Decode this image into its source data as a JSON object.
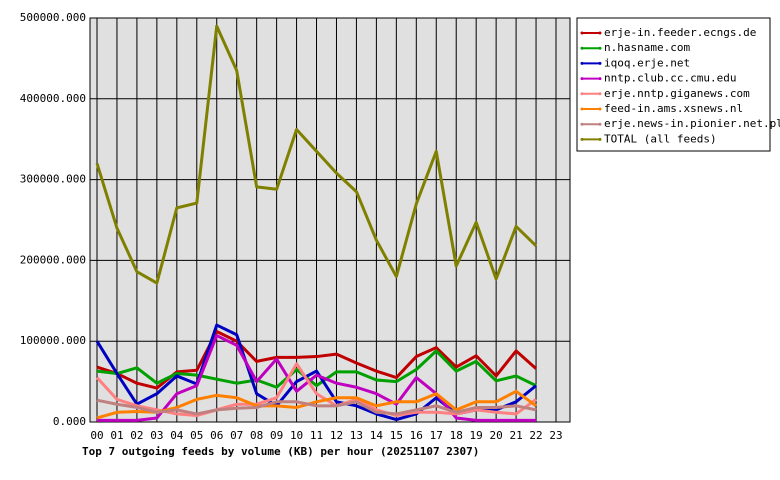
{
  "chart_data": {
    "type": "line",
    "title": "Top 7 outgoing feeds by volume (KB) per hour (20251107 2307)",
    "categories": [
      "00",
      "01",
      "02",
      "03",
      "04",
      "05",
      "06",
      "07",
      "08",
      "09",
      "10",
      "11",
      "12",
      "13",
      "14",
      "15",
      "16",
      "17",
      "18",
      "19",
      "20",
      "21",
      "22",
      "23"
    ],
    "ylim": [
      0,
      500000
    ],
    "yticks": [
      {
        "value": 0,
        "label": "0.000"
      },
      {
        "value": 100000,
        "label": "100000.000"
      },
      {
        "value": 200000,
        "label": "200000.000"
      },
      {
        "value": 300000,
        "label": "300000.000"
      },
      {
        "value": 400000,
        "label": "400000.000"
      },
      {
        "value": 500000,
        "label": "500000.000"
      }
    ],
    "grid": true,
    "legend": "right",
    "series": [
      {
        "name": "erje-in.feeder.ecngs.de",
        "color": "#c00000",
        "values": [
          68000,
          60000,
          48000,
          42000,
          62000,
          64000,
          112000,
          100000,
          75000,
          80000,
          80000,
          81000,
          84000,
          73000,
          63000,
          55000,
          81000,
          92000,
          68000,
          82000,
          57000,
          88000,
          66000,
          null
        ]
      },
      {
        "name": "n.hasname.com",
        "color": "#00a000",
        "values": [
          63000,
          60000,
          67000,
          48000,
          60000,
          58000,
          53000,
          48000,
          52000,
          43000,
          65000,
          45000,
          62000,
          62000,
          52000,
          50000,
          65000,
          88000,
          63000,
          75000,
          51000,
          57000,
          45000,
          null
        ]
      },
      {
        "name": "iqoq.erje.net",
        "color": "#0000c0",
        "values": [
          100000,
          60000,
          22000,
          35000,
          57000,
          47000,
          120000,
          108000,
          35000,
          20000,
          50000,
          63000,
          25000,
          20000,
          10000,
          3000,
          10000,
          30000,
          10000,
          15000,
          15000,
          25000,
          45000,
          null
        ]
      },
      {
        "name": "nntp.club.cc.cmu.edu",
        "color": "#c000c0",
        "values": [
          2000,
          2000,
          2000,
          5000,
          35000,
          45000,
          107000,
          95000,
          50000,
          78000,
          38000,
          58000,
          48000,
          43000,
          35000,
          22000,
          55000,
          35000,
          5000,
          2000,
          2000,
          2000,
          2000,
          null
        ]
      },
      {
        "name": "erje.nntp.giganews.com",
        "color": "#ff8080",
        "values": [
          55000,
          28000,
          20000,
          15000,
          10000,
          8000,
          15000,
          22000,
          22000,
          30000,
          72000,
          35000,
          20000,
          28000,
          15000,
          8000,
          12000,
          12000,
          10000,
          15000,
          12000,
          10000,
          28000,
          null
        ]
      },
      {
        "name": "feed-in.ams.xsnews.nl",
        "color": "#ff8000",
        "values": [
          5000,
          12000,
          13000,
          12000,
          18000,
          28000,
          33000,
          30000,
          20000,
          20000,
          18000,
          25000,
          30000,
          30000,
          20000,
          25000,
          25000,
          35000,
          15000,
          25000,
          25000,
          38000,
          20000,
          null
        ]
      },
      {
        "name": "erje.news-in.pionier.net.pl",
        "color": "#c08080",
        "values": [
          27000,
          22000,
          18000,
          12000,
          15000,
          10000,
          15000,
          17000,
          18000,
          25000,
          25000,
          20000,
          20000,
          25000,
          12000,
          10000,
          15000,
          20000,
          12000,
          18000,
          18000,
          20000,
          15000,
          null
        ]
      },
      {
        "name": "TOTAL (all feeds)",
        "color": "#808000",
        "values": [
          320000,
          240000,
          186000,
          172000,
          265000,
          271000,
          490000,
          435000,
          291000,
          288000,
          362000,
          335000,
          308000,
          285000,
          225000,
          180000,
          270000,
          335000,
          193000,
          247000,
          177000,
          242000,
          218000,
          null
        ]
      }
    ]
  }
}
